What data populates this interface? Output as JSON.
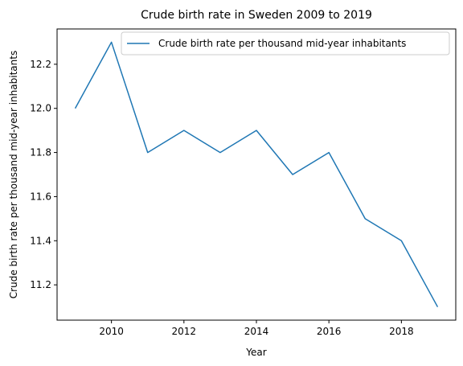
{
  "chart_data": {
    "type": "line",
    "title": "Crude birth rate in Sweden 2009 to 2019",
    "xlabel": "Year",
    "ylabel": "Crude birth rate per thousand mid-year inhabitants",
    "x": [
      2009,
      2010,
      2011,
      2012,
      2013,
      2014,
      2015,
      2016,
      2017,
      2018,
      2019
    ],
    "series": [
      {
        "name": "Crude birth rate per thousand mid-year inhabitants",
        "values": [
          12.0,
          12.3,
          11.8,
          11.9,
          11.8,
          11.9,
          11.7,
          11.8,
          11.5,
          11.4,
          11.1
        ],
        "color": "#1f77b4"
      }
    ],
    "xlim": [
      2008.5,
      2019.5
    ],
    "ylim": [
      11.04,
      12.36
    ],
    "xticks": [
      "2010",
      "2012",
      "2014",
      "2016",
      "2018"
    ],
    "yticks": [
      "11.2",
      "11.4",
      "11.6",
      "11.8",
      "12.0",
      "12.2"
    ],
    "grid": false,
    "legend_position": "top-right"
  }
}
